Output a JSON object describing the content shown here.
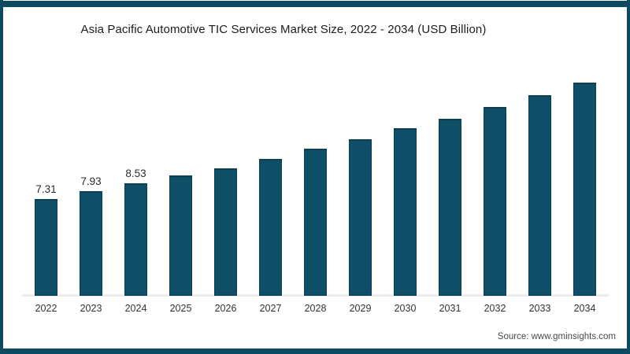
{
  "page": {
    "source": "Source: www.gminsights.com"
  },
  "colors": {
    "bar": "#0e4e66",
    "bar_edge": "#0b3f53",
    "frame": "#0d4b63",
    "axis_line": "#ececec",
    "title_text": "#1c1c1c",
    "tick_text": "#333333",
    "source_text": "#4a4a4a"
  },
  "chart_data": {
    "type": "bar",
    "title": "Asia Pacific Automotive TIC Services Market Size, 2022 - 2034 (USD Billion)",
    "unit": "USD Billion",
    "categories": [
      "2022",
      "2023",
      "2024",
      "2025",
      "2026",
      "2027",
      "2028",
      "2029",
      "2030",
      "2031",
      "2032",
      "2033",
      "2034"
    ],
    "values": [
      7.31,
      7.93,
      8.53,
      9.13,
      9.68,
      10.41,
      11.15,
      11.86,
      12.68,
      13.45,
      14.34,
      15.24,
      16.19
    ],
    "data_labels": [
      "7.31",
      "7.93",
      "8.53",
      "",
      "",
      "",
      "",
      "",
      "",
      "",
      "",
      "",
      ""
    ],
    "xlabel": "",
    "ylabel": "",
    "ylim": [
      0,
      22
    ],
    "grid": false,
    "legend": false,
    "bar_color": "#0e4e66",
    "notes": "Only the first three bars display data labels; 2025-2034 values estimated from bar heights"
  }
}
